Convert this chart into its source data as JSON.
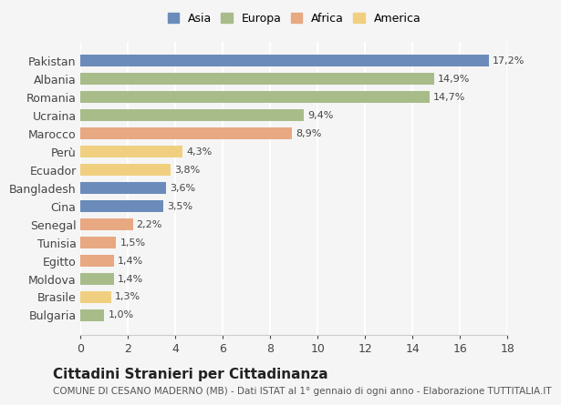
{
  "categories": [
    "Pakistan",
    "Albania",
    "Romania",
    "Ucraina",
    "Marocco",
    "Perù",
    "Ecuador",
    "Bangladesh",
    "Cina",
    "Senegal",
    "Tunisia",
    "Egitto",
    "Moldova",
    "Brasile",
    "Bulgaria"
  ],
  "values": [
    17.2,
    14.9,
    14.7,
    9.4,
    8.9,
    4.3,
    3.8,
    3.6,
    3.5,
    2.2,
    1.5,
    1.4,
    1.4,
    1.3,
    1.0
  ],
  "labels": [
    "17,2%",
    "14,9%",
    "14,7%",
    "9,4%",
    "8,9%",
    "4,3%",
    "3,8%",
    "3,6%",
    "3,5%",
    "2,2%",
    "1,5%",
    "1,4%",
    "1,4%",
    "1,3%",
    "1,0%"
  ],
  "continents": [
    "Asia",
    "Europa",
    "Europa",
    "Europa",
    "Africa",
    "America",
    "America",
    "Asia",
    "Asia",
    "Africa",
    "Africa",
    "Africa",
    "Europa",
    "America",
    "Europa"
  ],
  "continent_colors": {
    "Asia": "#6b8cba",
    "Europa": "#a8bc8a",
    "Africa": "#e8a882",
    "America": "#f0d080"
  },
  "legend_order": [
    "Asia",
    "Europa",
    "Africa",
    "America"
  ],
  "title": "Cittadini Stranieri per Cittadinanza",
  "subtitle": "COMUNE DI CESANO MADERNO (MB) - Dati ISTAT al 1° gennaio di ogni anno - Elaborazione TUTTITALIA.IT",
  "xlim": [
    0,
    18
  ],
  "xticks": [
    0,
    2,
    4,
    6,
    8,
    10,
    12,
    14,
    16,
    18
  ],
  "background_color": "#f5f5f5",
  "grid_color": "#ffffff",
  "bar_height": 0.65
}
